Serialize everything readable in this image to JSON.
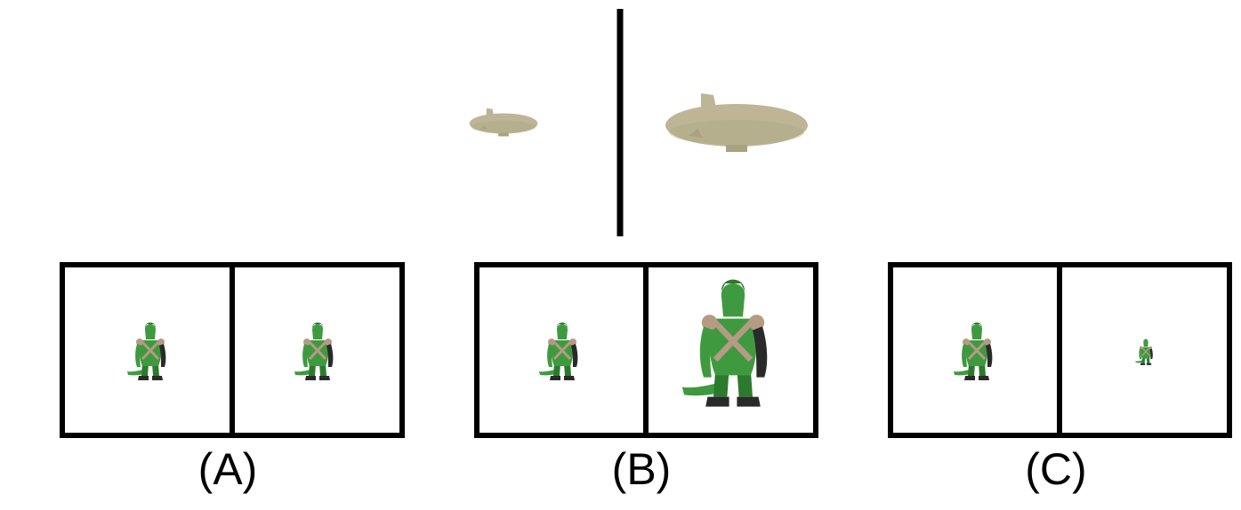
{
  "colors": {
    "frame": "#000000",
    "background": "#ffffff",
    "airship_body": "#bdb596",
    "airship_shadow": "#a9a282",
    "figure_skin": "#3f9a3f",
    "figure_skin_dark": "#2c7a2e",
    "figure_strap": "#b59a84",
    "figure_boots": "#2a2a2a"
  },
  "example": {
    "left_icon": "small-airship-icon",
    "right_icon": "large-airship-icon"
  },
  "options": [
    {
      "label": "(A)",
      "left_icon": "lizard-figure-icon",
      "right_icon": "lizard-figure-icon",
      "right_scale": 1.0
    },
    {
      "label": "(B)",
      "left_icon": "lizard-figure-icon",
      "right_icon": "lizard-figure-icon",
      "right_scale": 2.2
    },
    {
      "label": "(C)",
      "left_icon": "lizard-figure-icon",
      "right_icon": "lizard-figure-icon",
      "right_scale": 0.45
    }
  ]
}
